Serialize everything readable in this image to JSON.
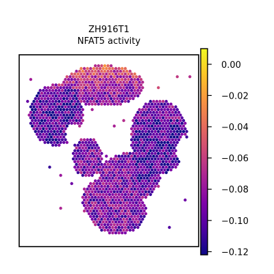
{
  "chart_data": {
    "type": "scatter",
    "title": "ZH916T1",
    "subtitle": "NFAT5 activity",
    "xlabel": "",
    "ylabel": "",
    "grid": false,
    "legend": "colorbar-right",
    "colormap": "plasma",
    "colorbar": {
      "min": -0.122,
      "max": 0.01,
      "ticks": [
        0.0,
        -0.02,
        -0.04,
        -0.06,
        -0.08,
        -0.1,
        -0.12
      ],
      "tick_labels": [
        "0.00",
        "−0.02",
        "−0.04",
        "−0.06",
        "−0.08",
        "−0.10",
        "−0.12"
      ]
    }
  }
}
